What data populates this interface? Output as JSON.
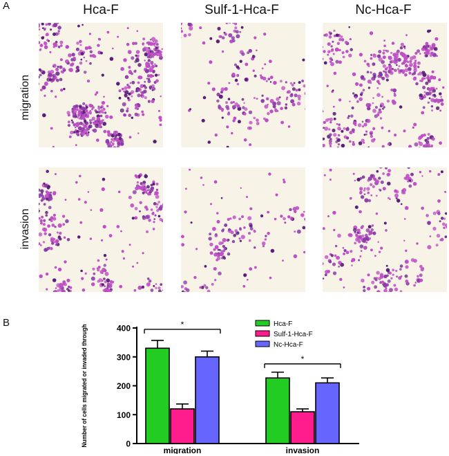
{
  "panel_a": {
    "letter": "A",
    "columns": [
      "Hca-F",
      "Sulf-1-Hca-F",
      "Nc-Hca-F"
    ],
    "rows": [
      "migration",
      "invasion"
    ],
    "image_colors": {
      "background": "#f7f3e6",
      "cell_light": "#c04fc6",
      "cell_dark": "#5a1f7a",
      "cell_mid": "#8b3aa8"
    }
  },
  "panel_b": {
    "letter": "B"
  },
  "chart_data": {
    "type": "bar",
    "ylabel": "Number of cells migrated or invaded through",
    "xlabel": "",
    "categories": [
      "migration",
      "invasion"
    ],
    "ylim": [
      0,
      400
    ],
    "yticks": [
      0,
      100,
      200,
      300,
      400
    ],
    "series": [
      {
        "name": "Hca-F",
        "color": "#22cc22",
        "values": [
          330,
          227
        ],
        "errors": [
          27,
          20
        ]
      },
      {
        "name": "Sulf-1-Hca-F",
        "color": "#ff1c8d",
        "values": [
          120,
          110
        ],
        "errors": [
          17,
          10
        ]
      },
      {
        "name": "Nc-Hca-F",
        "color": "#6666ff",
        "values": [
          300,
          210
        ],
        "errors": [
          20,
          17
        ]
      }
    ],
    "significance": [
      {
        "category": "migration",
        "label": "*"
      },
      {
        "category": "invasion",
        "label": "*"
      }
    ],
    "legend_position": "top-right",
    "grid": false
  }
}
